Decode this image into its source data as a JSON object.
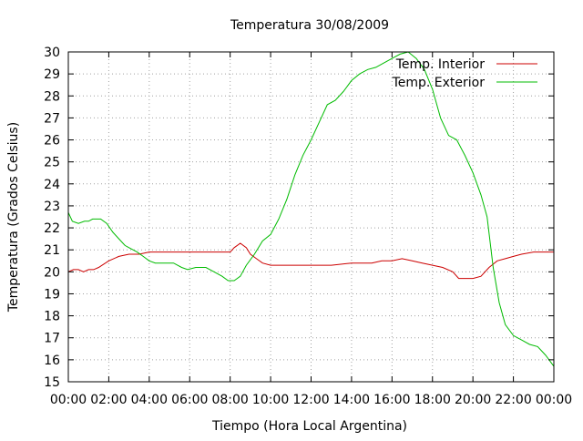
{
  "chart_data": {
    "type": "line",
    "title": "Temperatura 30/08/2009",
    "xlabel": "Tiempo (Hora Local Argentina)",
    "ylabel": "Temperatura (Grados Celsius)",
    "ylim": [
      15,
      30
    ],
    "xlim": [
      0,
      24
    ],
    "grid": true,
    "legend_position": "top-right",
    "x_ticks": [
      {
        "v": 0,
        "label": "00:00"
      },
      {
        "v": 2,
        "label": "02:00"
      },
      {
        "v": 4,
        "label": "04:00"
      },
      {
        "v": 6,
        "label": "06:00"
      },
      {
        "v": 8,
        "label": "08:00"
      },
      {
        "v": 10,
        "label": "10:00"
      },
      {
        "v": 12,
        "label": "12:00"
      },
      {
        "v": 14,
        "label": "14:00"
      },
      {
        "v": 16,
        "label": "16:00"
      },
      {
        "v": 18,
        "label": "18:00"
      },
      {
        "v": 20,
        "label": "20:00"
      },
      {
        "v": 22,
        "label": "22:00"
      },
      {
        "v": 24,
        "label": "00:00"
      }
    ],
    "y_ticks": [
      15,
      16,
      17,
      18,
      19,
      20,
      21,
      22,
      23,
      24,
      25,
      26,
      27,
      28,
      29,
      30
    ],
    "series": [
      {
        "name": "Temp. Interior",
        "color": "#cc0000",
        "points": [
          [
            0,
            20.0
          ],
          [
            0.25,
            20.1
          ],
          [
            0.5,
            20.1
          ],
          [
            0.75,
            20.0
          ],
          [
            1.0,
            20.1
          ],
          [
            1.25,
            20.1
          ],
          [
            1.5,
            20.2
          ],
          [
            2.0,
            20.5
          ],
          [
            2.5,
            20.7
          ],
          [
            3.0,
            20.8
          ],
          [
            3.5,
            20.8
          ],
          [
            4.0,
            20.9
          ],
          [
            5.0,
            20.9
          ],
          [
            6.0,
            20.9
          ],
          [
            7.0,
            20.9
          ],
          [
            8.0,
            20.9
          ],
          [
            8.2,
            21.1
          ],
          [
            8.5,
            21.3
          ],
          [
            8.8,
            21.1
          ],
          [
            9.0,
            20.8
          ],
          [
            9.3,
            20.6
          ],
          [
            9.6,
            20.4
          ],
          [
            10.0,
            20.3
          ],
          [
            10.5,
            20.3
          ],
          [
            11.0,
            20.3
          ],
          [
            12.0,
            20.3
          ],
          [
            13.0,
            20.3
          ],
          [
            14.0,
            20.4
          ],
          [
            15.0,
            20.4
          ],
          [
            15.5,
            20.5
          ],
          [
            16.0,
            20.5
          ],
          [
            16.5,
            20.6
          ],
          [
            17.0,
            20.5
          ],
          [
            17.5,
            20.4
          ],
          [
            18.0,
            20.3
          ],
          [
            18.5,
            20.2
          ],
          [
            19.0,
            20.0
          ],
          [
            19.3,
            19.7
          ],
          [
            19.6,
            19.7
          ],
          [
            20.0,
            19.7
          ],
          [
            20.4,
            19.8
          ],
          [
            20.8,
            20.2
          ],
          [
            21.2,
            20.5
          ],
          [
            21.6,
            20.6
          ],
          [
            22.0,
            20.7
          ],
          [
            22.4,
            20.8
          ],
          [
            23.0,
            20.9
          ],
          [
            23.5,
            20.9
          ],
          [
            24.0,
            20.9
          ]
        ]
      },
      {
        "name": "Temp. Exterior",
        "color": "#00bb00",
        "points": [
          [
            0,
            22.7
          ],
          [
            0.2,
            22.3
          ],
          [
            0.5,
            22.2
          ],
          [
            0.8,
            22.3
          ],
          [
            1.0,
            22.3
          ],
          [
            1.2,
            22.4
          ],
          [
            1.6,
            22.4
          ],
          [
            1.9,
            22.2
          ],
          [
            2.2,
            21.8
          ],
          [
            2.5,
            21.5
          ],
          [
            2.8,
            21.2
          ],
          [
            3.0,
            21.1
          ],
          [
            3.4,
            20.9
          ],
          [
            3.7,
            20.7
          ],
          [
            4.0,
            20.5
          ],
          [
            4.3,
            20.4
          ],
          [
            4.8,
            20.4
          ],
          [
            5.2,
            20.4
          ],
          [
            5.6,
            20.2
          ],
          [
            5.9,
            20.1
          ],
          [
            6.3,
            20.2
          ],
          [
            6.8,
            20.2
          ],
          [
            7.2,
            20.0
          ],
          [
            7.6,
            19.8
          ],
          [
            7.9,
            19.6
          ],
          [
            8.2,
            19.6
          ],
          [
            8.5,
            19.8
          ],
          [
            8.8,
            20.3
          ],
          [
            9.2,
            20.8
          ],
          [
            9.6,
            21.4
          ],
          [
            10.0,
            21.7
          ],
          [
            10.4,
            22.4
          ],
          [
            10.8,
            23.3
          ],
          [
            11.2,
            24.4
          ],
          [
            11.6,
            25.3
          ],
          [
            12.0,
            26.0
          ],
          [
            12.4,
            26.8
          ],
          [
            12.8,
            27.6
          ],
          [
            13.2,
            27.8
          ],
          [
            13.6,
            28.2
          ],
          [
            14.0,
            28.7
          ],
          [
            14.4,
            29.0
          ],
          [
            14.8,
            29.2
          ],
          [
            15.2,
            29.3
          ],
          [
            15.6,
            29.5
          ],
          [
            16.0,
            29.7
          ],
          [
            16.4,
            29.9
          ],
          [
            16.8,
            30.0
          ],
          [
            17.2,
            29.7
          ],
          [
            17.6,
            29.2
          ],
          [
            18.0,
            28.3
          ],
          [
            18.4,
            27.0
          ],
          [
            18.8,
            26.2
          ],
          [
            19.2,
            26.0
          ],
          [
            19.6,
            25.3
          ],
          [
            20.0,
            24.5
          ],
          [
            20.4,
            23.5
          ],
          [
            20.7,
            22.5
          ],
          [
            21.0,
            20.2
          ],
          [
            21.3,
            18.6
          ],
          [
            21.6,
            17.6
          ],
          [
            22.0,
            17.1
          ],
          [
            22.4,
            16.9
          ],
          [
            22.8,
            16.7
          ],
          [
            23.2,
            16.6
          ],
          [
            23.6,
            16.2
          ],
          [
            24.0,
            15.7
          ]
        ]
      }
    ]
  }
}
